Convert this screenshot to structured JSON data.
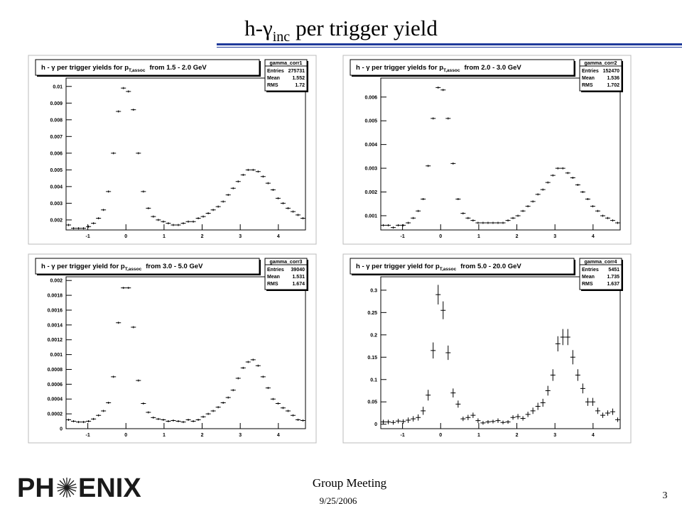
{
  "slide": {
    "title": {
      "main": "h-γ",
      "sub": "inc",
      "rest": "per trigger yield"
    },
    "footer": {
      "meeting": "Group Meeting",
      "date": "9/25/2006",
      "page": "3"
    },
    "logo": {
      "left": "PH",
      "right": "ENIX"
    }
  },
  "chart_data": [
    {
      "type": "histogram",
      "title": "h - γ per trigger yields for p",
      "title_sub": "T,assoc",
      "title_end": "from 1.5 - 2.0 GeV",
      "name": "gamma_corr1",
      "stats": [
        {
          "label": "Entries",
          "value": 275731
        },
        {
          "label": "Mean",
          "value": 1.552
        },
        {
          "label": "RMS",
          "value": 1.72
        }
      ],
      "color": "#000000",
      "bins": [
        -1.571,
        -1.44,
        -1.309,
        -1.178,
        -1.047,
        -0.916,
        -0.785,
        -0.654,
        -0.524,
        -0.393,
        -0.262,
        -0.131,
        0,
        0.131,
        0.262,
        0.393,
        0.524,
        0.654,
        0.785,
        0.916,
        1.047,
        1.178,
        1.309,
        1.44,
        1.571,
        1.702,
        1.833,
        1.963,
        2.094,
        2.225,
        2.356,
        2.487,
        2.618,
        2.749,
        2.88,
        3.011,
        3.142,
        3.272,
        3.403,
        3.534,
        3.665,
        3.796,
        3.927,
        4.058,
        4.189,
        4.32,
        4.451,
        4.581,
        4.712
      ],
      "values": [
        0.0017,
        0.0015,
        0.0015,
        0.0015,
        0.0016,
        0.0018,
        0.0021,
        0.0026,
        0.0037,
        0.006,
        0.0085,
        0.0099,
        0.0097,
        0.0086,
        0.006,
        0.0037,
        0.0027,
        0.0022,
        0.002,
        0.0019,
        0.0018,
        0.0017,
        0.0017,
        0.0018,
        0.0019,
        0.0019,
        0.0021,
        0.0022,
        0.0024,
        0.0026,
        0.0028,
        0.0031,
        0.0035,
        0.0039,
        0.0043,
        0.0047,
        0.005,
        0.005,
        0.0049,
        0.0046,
        0.0042,
        0.0038,
        0.0033,
        0.003,
        0.0027,
        0.0025,
        0.0023,
        0.0021
      ],
      "xlim": [
        -1.571,
        4.712
      ],
      "xticks": [
        -1,
        0,
        1,
        2,
        3,
        4
      ],
      "ylim": [
        0.0014,
        0.0105
      ],
      "yticks": [
        0.002,
        0.003,
        0.004,
        0.005,
        0.006,
        0.007,
        0.008,
        0.009,
        0.01
      ]
    },
    {
      "type": "histogram",
      "title": "h - γ per trigger yields for p",
      "title_sub": "T,assoc",
      "title_end": "from 2.0 - 3.0 GeV",
      "name": "gamma_corr2",
      "stats": [
        {
          "label": "Entries",
          "value": 152470
        },
        {
          "label": "Mean",
          "value": 1.536
        },
        {
          "label": "RMS",
          "value": 1.702
        }
      ],
      "color": "#000000",
      "bins": [
        -1.571,
        -1.44,
        -1.309,
        -1.178,
        -1.047,
        -0.916,
        -0.785,
        -0.654,
        -0.524,
        -0.393,
        -0.262,
        -0.131,
        0,
        0.131,
        0.262,
        0.393,
        0.524,
        0.654,
        0.785,
        0.916,
        1.047,
        1.178,
        1.309,
        1.44,
        1.571,
        1.702,
        1.833,
        1.963,
        2.094,
        2.225,
        2.356,
        2.487,
        2.618,
        2.749,
        2.88,
        3.011,
        3.142,
        3.272,
        3.403,
        3.534,
        3.665,
        3.796,
        3.927,
        4.058,
        4.189,
        4.32,
        4.451,
        4.581,
        4.712
      ],
      "values": [
        0.0006,
        0.0006,
        0.0005,
        0.0006,
        0.0006,
        0.0007,
        0.0009,
        0.0012,
        0.0017,
        0.0031,
        0.0051,
        0.0064,
        0.0063,
        0.0051,
        0.0032,
        0.0017,
        0.0011,
        0.0009,
        0.0008,
        0.0007,
        0.0007,
        0.0007,
        0.0007,
        0.0007,
        0.0007,
        0.0008,
        0.0009,
        0.001,
        0.0012,
        0.0014,
        0.0016,
        0.0019,
        0.0021,
        0.0024,
        0.0027,
        0.003,
        0.003,
        0.0028,
        0.0026,
        0.0023,
        0.002,
        0.0017,
        0.0014,
        0.0012,
        0.001,
        0.0009,
        0.0008,
        0.0007
      ],
      "xlim": [
        -1.571,
        4.712
      ],
      "xticks": [
        -1,
        0,
        1,
        2,
        3,
        4
      ],
      "ylim": [
        0.0004,
        0.0068
      ],
      "yticks": [
        0.001,
        0.002,
        0.003,
        0.004,
        0.005,
        0.006
      ]
    },
    {
      "type": "histogram",
      "title": "h - γ per trigger yield for p",
      "title_sub": "T,assoc",
      "title_end": "from 3.0 - 5.0 GeV",
      "name": "gamma_corr3",
      "stats": [
        {
          "label": "Entries",
          "value": 39040
        },
        {
          "label": "Mean",
          "value": 1.531
        },
        {
          "label": "RMS",
          "value": 1.674
        }
      ],
      "color": "#000000",
      "bins": [
        -1.571,
        -1.44,
        -1.309,
        -1.178,
        -1.047,
        -0.916,
        -0.785,
        -0.654,
        -0.524,
        -0.393,
        -0.262,
        -0.131,
        0,
        0.131,
        0.262,
        0.393,
        0.524,
        0.654,
        0.785,
        0.916,
        1.047,
        1.178,
        1.309,
        1.44,
        1.571,
        1.702,
        1.833,
        1.963,
        2.094,
        2.225,
        2.356,
        2.487,
        2.618,
        2.749,
        2.88,
        3.011,
        3.142,
        3.272,
        3.403,
        3.534,
        3.665,
        3.796,
        3.927,
        4.058,
        4.189,
        4.32,
        4.451,
        4.581,
        4.712
      ],
      "values": [
        0.00012,
        0.0001,
        9e-05,
        9e-05,
        0.0001,
        0.00013,
        0.00018,
        0.00024,
        0.00035,
        0.0007,
        0.00143,
        0.0019,
        0.0019,
        0.00137,
        0.00065,
        0.00034,
        0.00022,
        0.00015,
        0.00013,
        0.00012,
        0.0001,
        0.00011,
        0.0001,
        9e-05,
        0.00012,
        0.0001,
        0.00012,
        0.00016,
        0.0002,
        0.00024,
        0.00029,
        0.00035,
        0.00042,
        0.00052,
        0.00068,
        0.00082,
        0.0009,
        0.00093,
        0.00085,
        0.0007,
        0.00055,
        0.0004,
        0.00034,
        0.00028,
        0.00024,
        0.00018,
        0.00012,
        0.00011
      ],
      "xlim": [
        -1.571,
        4.712
      ],
      "xticks": [
        -1,
        0,
        1,
        2,
        3,
        4
      ],
      "ylim": [
        0,
        0.00205
      ],
      "yticks": [
        0,
        0.0002,
        0.0004,
        0.0006,
        0.0008,
        0.001,
        0.0012,
        0.0014,
        0.0016,
        0.0018,
        0.002
      ]
    },
    {
      "type": "histogram",
      "title": "h - γ per trigger yield for p",
      "title_sub": "T,assoc",
      "title_end": "from 5.0 - 20.0 GeV",
      "name": "gamma_corr4",
      "stats": [
        {
          "label": "Entries",
          "value": 5451
        },
        {
          "label": "Mean",
          "value": 1.735
        },
        {
          "label": "RMS",
          "value": 1.637
        }
      ],
      "color": "#000000",
      "bins": [
        -1.571,
        -1.44,
        -1.309,
        -1.178,
        -1.047,
        -0.916,
        -0.785,
        -0.654,
        -0.524,
        -0.393,
        -0.262,
        -0.131,
        0,
        0.131,
        0.262,
        0.393,
        0.524,
        0.654,
        0.785,
        0.916,
        1.047,
        1.178,
        1.309,
        1.44,
        1.571,
        1.702,
        1.833,
        1.963,
        2.094,
        2.225,
        2.356,
        2.487,
        2.618,
        2.749,
        2.88,
        3.011,
        3.142,
        3.272,
        3.403,
        3.534,
        3.665,
        3.796,
        3.927,
        4.058,
        4.189,
        4.32,
        4.451,
        4.581,
        4.712
      ],
      "values": [
        0.005,
        0.005,
        0.004,
        0.007,
        0.006,
        0.009,
        0.012,
        0.015,
        0.03,
        0.065,
        0.165,
        0.29,
        0.255,
        0.16,
        0.07,
        0.045,
        0.012,
        0.015,
        0.02,
        0.008,
        0.003,
        0.005,
        0.006,
        0.008,
        0.004,
        0.005,
        0.015,
        0.017,
        0.013,
        0.022,
        0.03,
        0.04,
        0.048,
        0.075,
        0.11,
        0.18,
        0.195,
        0.195,
        0.15,
        0.11,
        0.08,
        0.05,
        0.05,
        0.03,
        0.02,
        0.025,
        0.028,
        0.01
      ],
      "errors": [
        0.005,
        0.005,
        0.005,
        0.005,
        0.005,
        0.006,
        0.006,
        0.007,
        0.009,
        0.012,
        0.018,
        0.022,
        0.02,
        0.016,
        0.01,
        0.008,
        0.005,
        0.006,
        0.006,
        0.005,
        0.004,
        0.004,
        0.004,
        0.005,
        0.004,
        0.004,
        0.005,
        0.006,
        0.005,
        0.006,
        0.007,
        0.008,
        0.009,
        0.011,
        0.013,
        0.017,
        0.018,
        0.018,
        0.016,
        0.013,
        0.011,
        0.009,
        0.009,
        0.007,
        0.006,
        0.006,
        0.007,
        0.005
      ],
      "xlim": [
        -1.571,
        4.712
      ],
      "xticks": [
        -1,
        0,
        1,
        2,
        3,
        4
      ],
      "ylim": [
        -0.01,
        0.33
      ],
      "yticks": [
        0,
        0.05,
        0.1,
        0.15,
        0.2,
        0.25,
        0.3
      ]
    }
  ]
}
